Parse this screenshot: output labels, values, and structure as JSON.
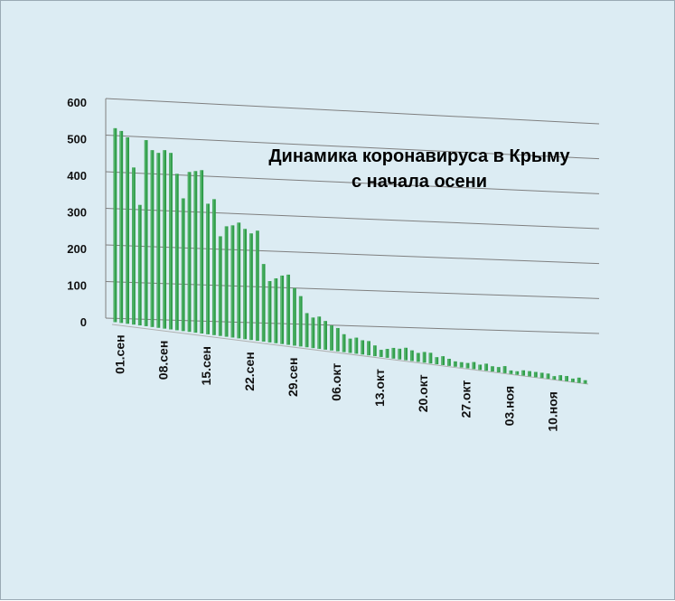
{
  "chart_data": {
    "type": "bar",
    "title_lines": [
      "Динамика  коронавируса в Крыму",
      "с начала осени"
    ],
    "xlabel": "",
    "ylabel": "",
    "ylim": [
      0,
      600
    ],
    "yticks": [
      0,
      100,
      200,
      300,
      400,
      500,
      600
    ],
    "grid": true,
    "legend": "none",
    "bar_color": "#2f9d4a",
    "bar_color_light": "#7fd08f",
    "x_tick_labels": [
      "01.сен",
      "08.сен",
      "15.сен",
      "22.сен",
      "29.сен",
      "06.окт",
      "13.окт",
      "20.окт",
      "27.окт",
      "03.ноя",
      "10.ноя"
    ],
    "x_tick_every": 7,
    "categories_start": "01.сен",
    "values": [
      530,
      525,
      510,
      430,
      330,
      510,
      485,
      480,
      490,
      485,
      430,
      365,
      440,
      445,
      450,
      360,
      375,
      275,
      305,
      310,
      320,
      305,
      295,
      305,
      215,
      170,
      180,
      190,
      195,
      160,
      140,
      95,
      85,
      90,
      80,
      70,
      65,
      50,
      40,
      45,
      40,
      40,
      30,
      20,
      25,
      30,
      30,
      35,
      30,
      25,
      30,
      30,
      20,
      25,
      20,
      15,
      15,
      15,
      20,
      15,
      20,
      15,
      15,
      20,
      10,
      10,
      15,
      15,
      15,
      15,
      15,
      10,
      15,
      15,
      10,
      15,
      10
    ]
  }
}
